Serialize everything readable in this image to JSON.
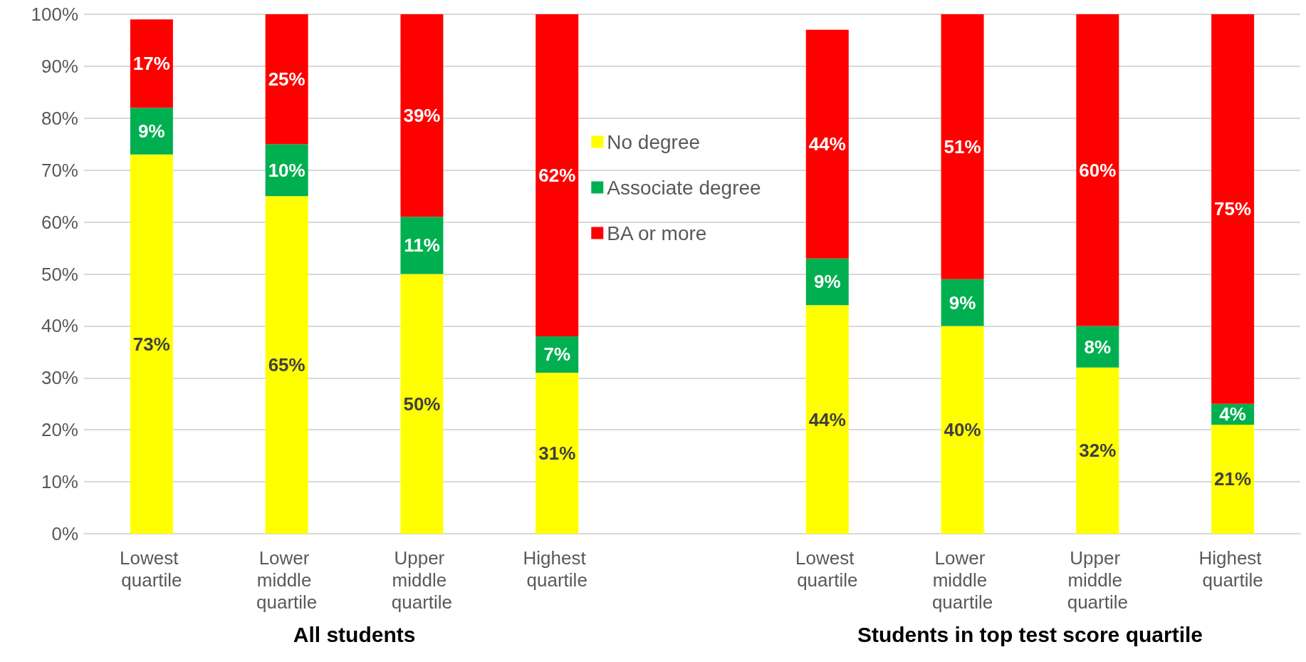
{
  "chart_data": {
    "type": "bar",
    "stacked": true,
    "categories": [
      "Lowest quartile",
      "Lower middle quartile",
      "Upper middle quartile",
      "Highest quartile",
      null,
      "Lowest quartile",
      "Lower middle quartile",
      "Upper middle quartile",
      "Highest quartile"
    ],
    "series": [
      {
        "name": "No degree",
        "color": "#ffff00",
        "values": [
          73,
          65,
          50,
          31,
          null,
          44,
          40,
          32,
          21
        ],
        "value_labels": [
          "73%",
          "65%",
          "50%",
          "31%",
          null,
          "44%",
          "40%",
          "32%",
          "21%"
        ]
      },
      {
        "name": "Associate degree",
        "color": "#00b050",
        "values": [
          9,
          10,
          11,
          7,
          null,
          9,
          9,
          8,
          4
        ],
        "value_labels": [
          "9%",
          "10%",
          "11%",
          "7%",
          null,
          "9%",
          "9%",
          "8%",
          "4%"
        ]
      },
      {
        "name": "BA or more",
        "color": "#ff0000",
        "values": [
          17,
          25,
          39,
          62,
          null,
          44,
          51,
          60,
          75
        ],
        "value_labels": [
          "17%",
          "25%",
          "39%",
          "62%",
          null,
          "44%",
          "51%",
          "60%",
          "75%"
        ]
      }
    ],
    "ylim": [
      0,
      100
    ],
    "yticks": [
      {
        "value": 0,
        "label": "0%"
      },
      {
        "value": 10,
        "label": "10%"
      },
      {
        "value": 20,
        "label": "20%"
      },
      {
        "value": 30,
        "label": "30%"
      },
      {
        "value": 40,
        "label": "40%"
      },
      {
        "value": 50,
        "label": "50%"
      },
      {
        "value": 60,
        "label": "60%"
      },
      {
        "value": 70,
        "label": "70%"
      },
      {
        "value": 80,
        "label": "80%"
      },
      {
        "value": 90,
        "label": "90%"
      },
      {
        "value": 100,
        "label": "100%"
      }
    ],
    "grid": "y",
    "legend": "top",
    "annotations": [
      "All students",
      "Students in top test score quartile"
    ]
  }
}
